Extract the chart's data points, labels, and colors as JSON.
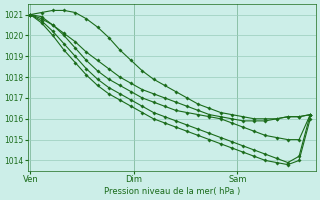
{
  "bg_color": "#cceee8",
  "grid_color": "#99ccbb",
  "line_color": "#1a6b1a",
  "xlabel": "Pression niveau de la mer( hPa )",
  "ylim": [
    1013.5,
    1021.5
  ],
  "yticks": [
    1014,
    1015,
    1016,
    1017,
    1018,
    1019,
    1020,
    1021
  ],
  "xtick_labels": [
    "Ven",
    "Dim",
    "Sam"
  ],
  "xtick_x": [
    0.0,
    0.37,
    0.74
  ],
  "series": [
    {
      "x": [
        0.0,
        0.04,
        0.08,
        0.12,
        0.16,
        0.2,
        0.24,
        0.28,
        0.32,
        0.36,
        0.4,
        0.44,
        0.48,
        0.52,
        0.56,
        0.6,
        0.64,
        0.68,
        0.72,
        0.76,
        0.8,
        0.84,
        0.88,
        0.92,
        0.96,
        1.0
      ],
      "y": [
        1021.0,
        1020.8,
        1020.5,
        1020.1,
        1019.7,
        1019.2,
        1018.8,
        1018.4,
        1018.0,
        1017.7,
        1017.4,
        1017.2,
        1017.0,
        1016.8,
        1016.6,
        1016.4,
        1016.2,
        1016.1,
        1016.0,
        1015.9,
        1015.9,
        1015.9,
        1016.0,
        1016.1,
        1016.1,
        1016.2
      ]
    },
    {
      "x": [
        0.0,
        0.04,
        0.08,
        0.12,
        0.16,
        0.2,
        0.24,
        0.28,
        0.32,
        0.36,
        0.4,
        0.44,
        0.48,
        0.52,
        0.56,
        0.6,
        0.64,
        0.68,
        0.72,
        0.76,
        0.8,
        0.84,
        0.88,
        0.92,
        0.96,
        1.0
      ],
      "y": [
        1021.0,
        1021.1,
        1021.2,
        1021.2,
        1021.1,
        1020.8,
        1020.4,
        1019.9,
        1019.3,
        1018.8,
        1018.3,
        1017.9,
        1017.6,
        1017.3,
        1017.0,
        1016.7,
        1016.5,
        1016.3,
        1016.2,
        1016.1,
        1016.0,
        1016.0,
        1016.0,
        1016.1,
        1016.1,
        1016.2
      ]
    },
    {
      "x": [
        0.0,
        0.04,
        0.08,
        0.12,
        0.16,
        0.2,
        0.24,
        0.28,
        0.32,
        0.36,
        0.4,
        0.44,
        0.48,
        0.52,
        0.56,
        0.6,
        0.64,
        0.68,
        0.72,
        0.76,
        0.8,
        0.84,
        0.88,
        0.92,
        0.96,
        1.0
      ],
      "y": [
        1021.0,
        1020.9,
        1020.5,
        1020.0,
        1019.4,
        1018.8,
        1018.3,
        1017.9,
        1017.6,
        1017.3,
        1017.0,
        1016.8,
        1016.6,
        1016.4,
        1016.3,
        1016.2,
        1016.1,
        1016.0,
        1015.8,
        1015.6,
        1015.4,
        1015.2,
        1015.1,
        1015.0,
        1015.0,
        1016.2
      ]
    },
    {
      "x": [
        0.0,
        0.04,
        0.08,
        0.12,
        0.16,
        0.2,
        0.24,
        0.28,
        0.32,
        0.36,
        0.4,
        0.44,
        0.48,
        0.52,
        0.56,
        0.6,
        0.64,
        0.68,
        0.72,
        0.76,
        0.8,
        0.84,
        0.88,
        0.92,
        0.96,
        1.0
      ],
      "y": [
        1021.0,
        1020.7,
        1020.2,
        1019.6,
        1019.0,
        1018.4,
        1017.9,
        1017.5,
        1017.2,
        1016.9,
        1016.6,
        1016.3,
        1016.1,
        1015.9,
        1015.7,
        1015.5,
        1015.3,
        1015.1,
        1014.9,
        1014.7,
        1014.5,
        1014.3,
        1014.1,
        1013.9,
        1014.2,
        1016.2
      ]
    },
    {
      "x": [
        0.0,
        0.04,
        0.08,
        0.12,
        0.16,
        0.2,
        0.24,
        0.28,
        0.32,
        0.36,
        0.4,
        0.44,
        0.48,
        0.52,
        0.56,
        0.6,
        0.64,
        0.68,
        0.72,
        0.76,
        0.8,
        0.84,
        0.88,
        0.92,
        0.96,
        1.0
      ],
      "y": [
        1021.0,
        1020.6,
        1020.0,
        1019.3,
        1018.7,
        1018.1,
        1017.6,
        1017.2,
        1016.9,
        1016.6,
        1016.3,
        1016.0,
        1015.8,
        1015.6,
        1015.4,
        1015.2,
        1015.0,
        1014.8,
        1014.6,
        1014.4,
        1014.2,
        1014.0,
        1013.9,
        1013.8,
        1014.0,
        1016.0
      ]
    }
  ]
}
